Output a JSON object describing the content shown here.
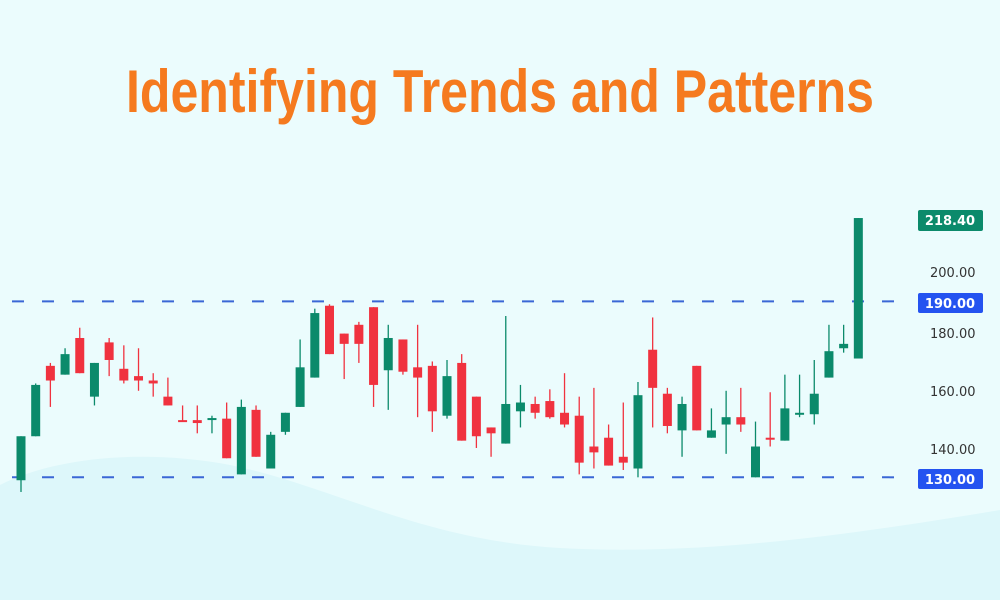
{
  "colors": {
    "background": "#ebfcfd",
    "title": "#f57a1f",
    "up": "#0b8a6b",
    "down": "#f0323f",
    "level_line": "#3b67d6",
    "level_tag": "#2453f0",
    "last_price_tag": "#0b8a6b"
  },
  "chart_data": {
    "type": "candlestick",
    "title": "Identifying Trends and Patterns",
    "ylim": [
      122,
      222
    ],
    "y_ticks": [
      "200.00",
      "180.00",
      "160.00",
      "140.00"
    ],
    "y_tick_values": [
      200,
      180,
      160,
      140
    ],
    "grid": false,
    "levels": [
      {
        "value": 190,
        "label": "190.00",
        "style": "dashed"
      },
      {
        "value": 130,
        "label": "130.00",
        "style": "dashed"
      }
    ],
    "last_price": {
      "value": 218.4,
      "label": "218.40"
    },
    "candles": [
      [
        129,
        144,
        144,
        125
      ],
      [
        144,
        161.5,
        162,
        144
      ],
      [
        168,
        163,
        169,
        154
      ],
      [
        165,
        172,
        174,
        165
      ],
      [
        177.5,
        165.5,
        181,
        165.5
      ],
      [
        157.5,
        169,
        169,
        154.5
      ],
      [
        176,
        170,
        177.5,
        164.5
      ],
      [
        167,
        163,
        175,
        162
      ],
      [
        164.5,
        163,
        174,
        159.5
      ],
      [
        163,
        162,
        165.5,
        157.5
      ],
      [
        157.5,
        154.5,
        164,
        154.5
      ],
      [
        149.5,
        149,
        154.5,
        149
      ],
      [
        149.5,
        148.5,
        154.5,
        145
      ],
      [
        150,
        150.2,
        151,
        145
      ],
      [
        150,
        136.5,
        155.5,
        136.5
      ],
      [
        131,
        154,
        156.5,
        131
      ],
      [
        153,
        137,
        154.5,
        137
      ],
      [
        133,
        144.5,
        145.5,
        133
      ],
      [
        145.5,
        152,
        152,
        144.5
      ],
      [
        154,
        167.5,
        177,
        154
      ],
      [
        164,
        186,
        187.5,
        164
      ],
      [
        188.5,
        172,
        189,
        172
      ],
      [
        179,
        175.5,
        179,
        163.5
      ],
      [
        182,
        175.5,
        183,
        169
      ],
      [
        188,
        161.5,
        188,
        154
      ],
      [
        166.5,
        177.5,
        182,
        153
      ],
      [
        177,
        166,
        177,
        165
      ],
      [
        167.5,
        164,
        182,
        150.5
      ],
      [
        168,
        152.5,
        169.5,
        145.5
      ],
      [
        151,
        164.5,
        170,
        150
      ],
      [
        169,
        142.5,
        172,
        142.5
      ],
      [
        157.5,
        144,
        157.5,
        140
      ],
      [
        147,
        145,
        147,
        137
      ],
      [
        141.5,
        155,
        185,
        141.5
      ],
      [
        152.5,
        155.5,
        161.5,
        147
      ],
      [
        155,
        152,
        157.5,
        150
      ],
      [
        156,
        150.5,
        160,
        150
      ],
      [
        152,
        148,
        165.5,
        147
      ],
      [
        151,
        135,
        157.5,
        131
      ],
      [
        140.5,
        138.5,
        160.5,
        133
      ],
      [
        143.5,
        134,
        148,
        134
      ],
      [
        137,
        135,
        155.5,
        132.5
      ],
      [
        133,
        158,
        162.5,
        130
      ],
      [
        173.5,
        160.5,
        184.5,
        147
      ],
      [
        158.5,
        147.5,
        160.5,
        145
      ],
      [
        146,
        155,
        157.5,
        137
      ],
      [
        168,
        146,
        168,
        146
      ],
      [
        143.5,
        146,
        153.5,
        143.5
      ],
      [
        148,
        150.5,
        159.5,
        138
      ],
      [
        150.5,
        148,
        160.5,
        145.5
      ],
      [
        130,
        140.5,
        149,
        130
      ],
      [
        143.5,
        143,
        159,
        140.5
      ],
      [
        142.5,
        153.5,
        165,
        142.5
      ],
      [
        152,
        152,
        165,
        150.5
      ],
      [
        151.5,
        158.5,
        170,
        148
      ],
      [
        164,
        173,
        182,
        164
      ],
      [
        174,
        175.5,
        182,
        172.5
      ],
      [
        170.5,
        218.4,
        218.4,
        170.5
      ]
    ],
    "candle_fields": [
      "open",
      "close",
      "high",
      "low"
    ]
  }
}
